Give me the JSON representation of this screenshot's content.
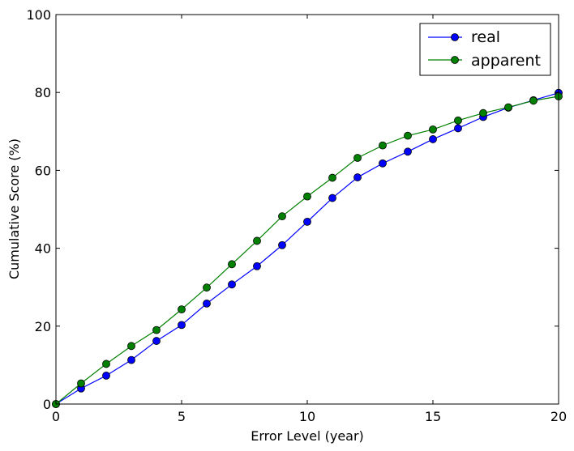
{
  "chart_data": {
    "type": "line",
    "xlabel": "Error Level (year)",
    "ylabel": "Cumulative Score (%)",
    "xlim": [
      0,
      20
    ],
    "ylim": [
      0,
      100
    ],
    "x_ticks": [
      0,
      5,
      10,
      15,
      20
    ],
    "y_ticks": [
      0,
      20,
      40,
      60,
      80,
      100
    ],
    "grid": false,
    "legend_position": "top-right",
    "x": [
      0,
      1,
      2,
      3,
      4,
      5,
      6,
      7,
      8,
      9,
      10,
      11,
      12,
      13,
      14,
      15,
      16,
      17,
      18,
      19,
      20
    ],
    "series": [
      {
        "name": "real",
        "color": "#0000ff",
        "marker": "circle",
        "values": [
          0,
          4.0,
          7.3,
          11.3,
          16.2,
          20.3,
          25.8,
          30.7,
          35.4,
          40.8,
          46.8,
          52.9,
          58.2,
          61.8,
          64.8,
          68.0,
          70.8,
          73.7,
          76.1,
          78.0,
          79.9
        ]
      },
      {
        "name": "apparent",
        "color": "#008000",
        "marker": "circle",
        "values": [
          0,
          5.3,
          10.3,
          14.9,
          19.0,
          24.3,
          29.9,
          35.9,
          41.9,
          48.2,
          53.3,
          58.1,
          63.2,
          66.4,
          68.9,
          70.5,
          72.8,
          74.7,
          76.2,
          77.9,
          79.0
        ]
      }
    ]
  }
}
